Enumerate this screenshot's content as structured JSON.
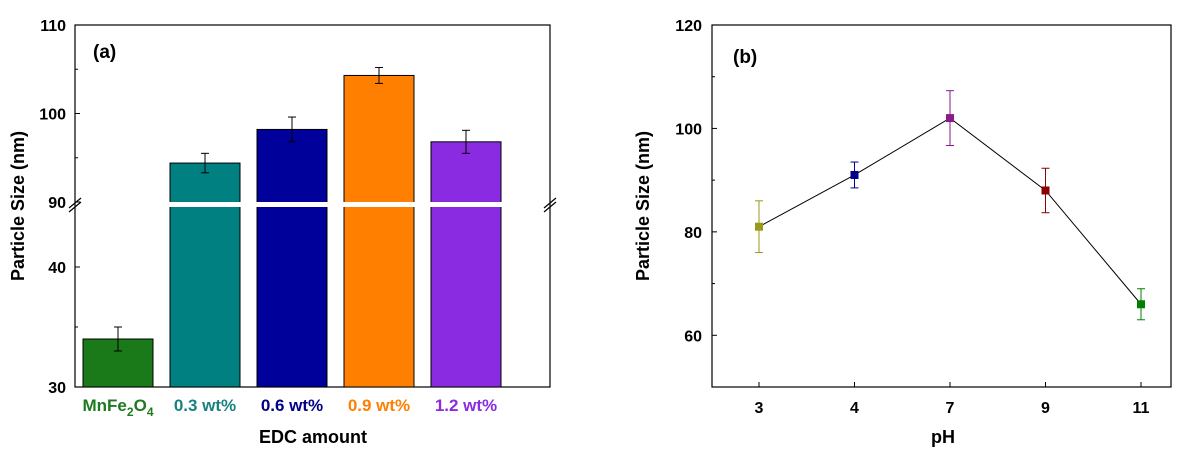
{
  "chart_data": [
    {
      "type": "bar",
      "panel_label": "(a)",
      "xlabel": "EDC amount",
      "ylabel": "Particle Size (nm)",
      "categories": [
        {
          "text": "MnFe",
          "sub1": "2",
          "mid": "O",
          "sub2": "4",
          "color": "#1f7a1f"
        },
        {
          "text": "0.3 wt%",
          "color": "#1a8080"
        },
        {
          "text": "0.6 wt%",
          "color": "#00008b"
        },
        {
          "text": "0.9 wt%",
          "color": "#ff8000"
        },
        {
          "text": "1.2 wt%",
          "color": "#8a2be2"
        }
      ],
      "values": [
        34,
        94.4,
        98.2,
        104.3,
        96.8
      ],
      "errors": [
        1.0,
        1.1,
        1.4,
        0.9,
        1.3
      ],
      "bar_colors": [
        "#1a7a1a",
        "#008080",
        "#00009a",
        "#ff8000",
        "#8a2be2"
      ],
      "y_axis_break": {
        "lower_range": [
          30,
          45
        ],
        "upper_range": [
          90,
          110
        ]
      },
      "lower_ticks": [
        30,
        40
      ],
      "upper_ticks": [
        90,
        100,
        110
      ],
      "grid": false
    },
    {
      "type": "line",
      "panel_label": "(b)",
      "xlabel": "pH",
      "ylabel": "Particle Size (nm)",
      "categories": [
        "3",
        "4",
        "7",
        "9",
        "11"
      ],
      "values": [
        81,
        91,
        102,
        88,
        66
      ],
      "errors": [
        5,
        2.5,
        5.3,
        4.3,
        3
      ],
      "marker_colors": [
        "#9a9a1a",
        "#00008b",
        "#8b1a8b",
        "#8b0000",
        "#008000"
      ],
      "line_color": "#000000",
      "ylim": [
        50,
        120
      ],
      "y_ticks": [
        60,
        80,
        100,
        120
      ],
      "grid": false
    }
  ]
}
